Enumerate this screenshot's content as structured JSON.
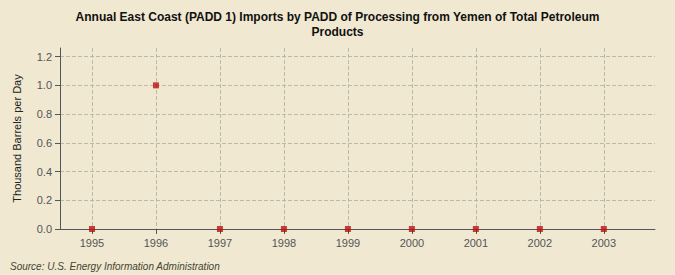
{
  "chart_data": {
    "type": "scatter",
    "title": "Annual East Coast (PADD 1) Imports by PADD of Processing from Yemen of Total Petroleum\nProducts",
    "y_label": "Thousand Barrels per Day",
    "annotations": [
      "Source: U.S. Energy Information Administration"
    ],
    "x": [
      1995,
      1996,
      1997,
      1998,
      1999,
      2000,
      2001,
      2002,
      2003
    ],
    "values": [
      0.0,
      1.0,
      0.0,
      0.0,
      0.0,
      0.0,
      0.0,
      0.0,
      0.0
    ],
    "color": "#bb1111",
    "marker": "square",
    "xlim": [
      1994.5,
      2003.8
    ],
    "xticks": [
      1995,
      1996,
      1997,
      1998,
      1999,
      2000,
      2001,
      2002,
      2003
    ],
    "ylim": [
      0.0,
      1.26
    ],
    "yticks": [
      {
        "value": 0.0,
        "label": "0.0"
      },
      0.2,
      0.4,
      0.6,
      0.8,
      {
        "value": 1.0,
        "label": "1.0"
      },
      1.2
    ],
    "grid": true
  }
}
